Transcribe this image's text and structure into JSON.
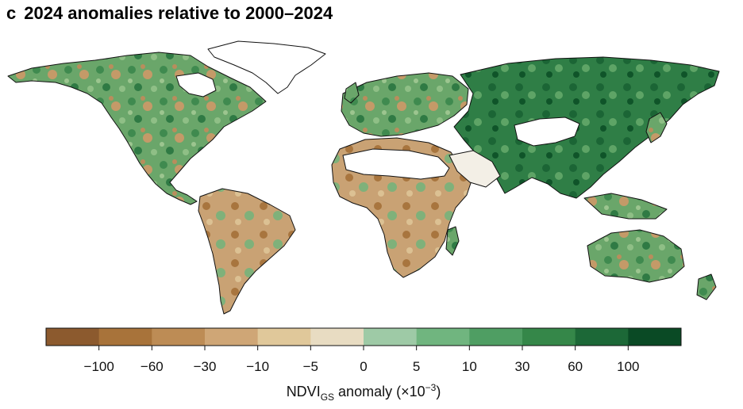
{
  "title": {
    "panel_letter": "c",
    "text": "2024 anomalies relative to 2000–2024"
  },
  "colorbar": {
    "label_main": "NDVI",
    "label_sub": "GS",
    "label_rest": " anomaly (×10",
    "label_sup": "−3",
    "label_close": ")",
    "colors": [
      "#8c5a2e",
      "#a8733a",
      "#bd8c55",
      "#cfa676",
      "#e0c89a",
      "#e8dcc2",
      "#9ecaa6",
      "#70b57f",
      "#4f9e63",
      "#358749",
      "#1c6837",
      "#0a4a25"
    ],
    "ticks": [
      "−100",
      "−60",
      "−30",
      "−10",
      "−5",
      "0",
      "5",
      "10",
      "30",
      "60",
      "100"
    ]
  },
  "map_colors": {
    "land_green": "#5f9f62",
    "land_brown": "#c3996a",
    "no_data": "#ffffff",
    "coastline": "#111111"
  }
}
